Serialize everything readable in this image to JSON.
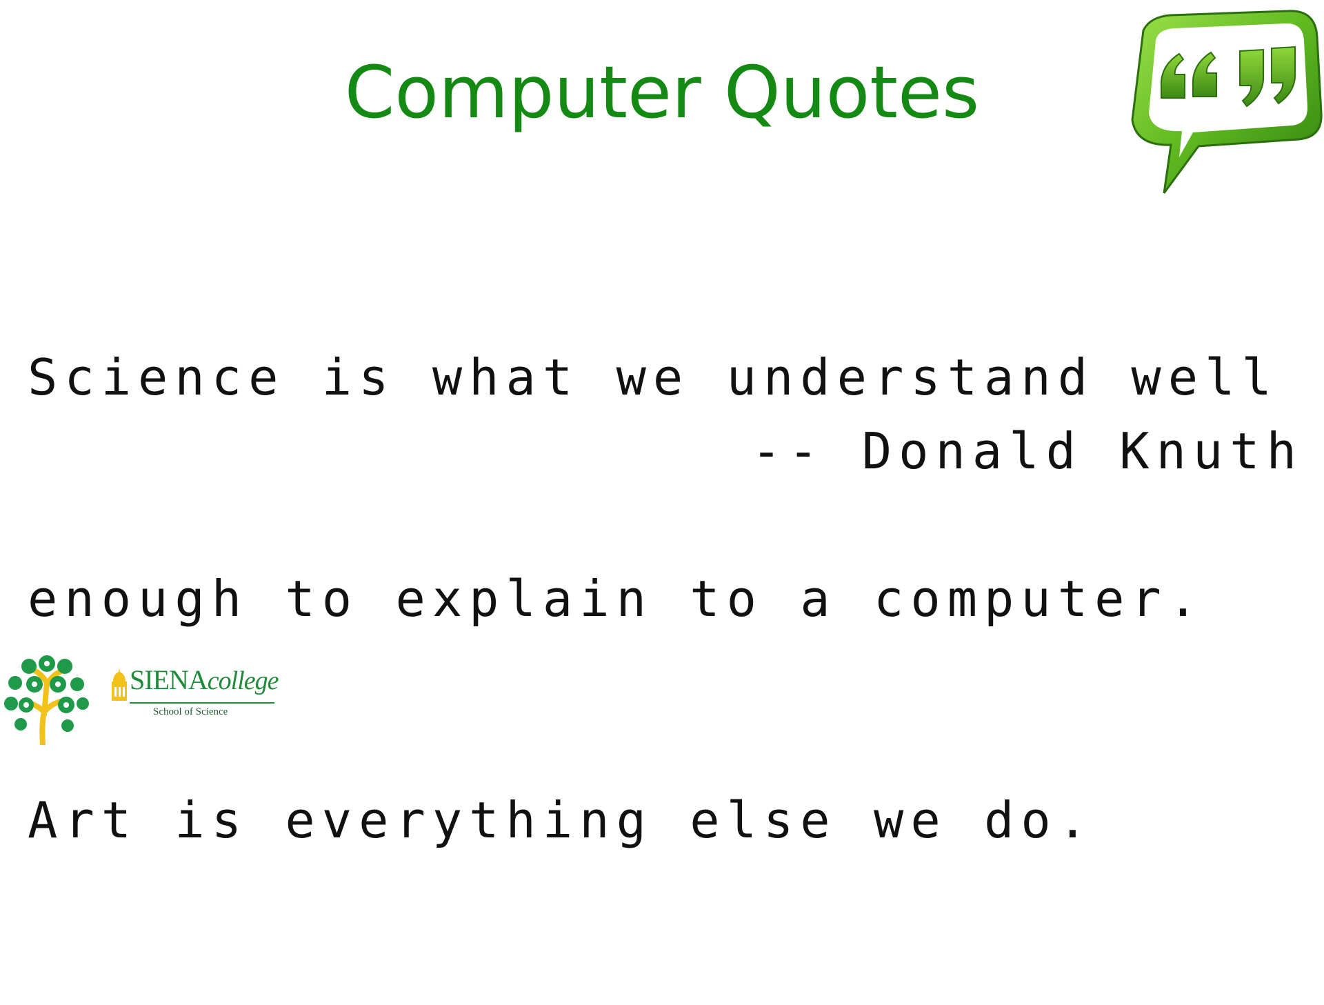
{
  "slide": {
    "title": "Computer Quotes",
    "quote_lines": [
      "Science is what we understand well",
      "enough to explain to a computer.",
      "Art is everything else we do."
    ],
    "attribution": "-- Donald Knuth"
  },
  "logo": {
    "wordmark_main": "SIENA",
    "wordmark_college": "college",
    "subtitle": "School of Science"
  },
  "icons": {
    "quote_bubble": "quote-bubble-icon",
    "tree": "science-tree-icon",
    "dome": "dome-icon"
  },
  "colors": {
    "title_green": "#148a14",
    "bubble_green": "#6cc02a",
    "siena_green": "#1f8b3a",
    "tree_gold": "#f2c21b"
  }
}
